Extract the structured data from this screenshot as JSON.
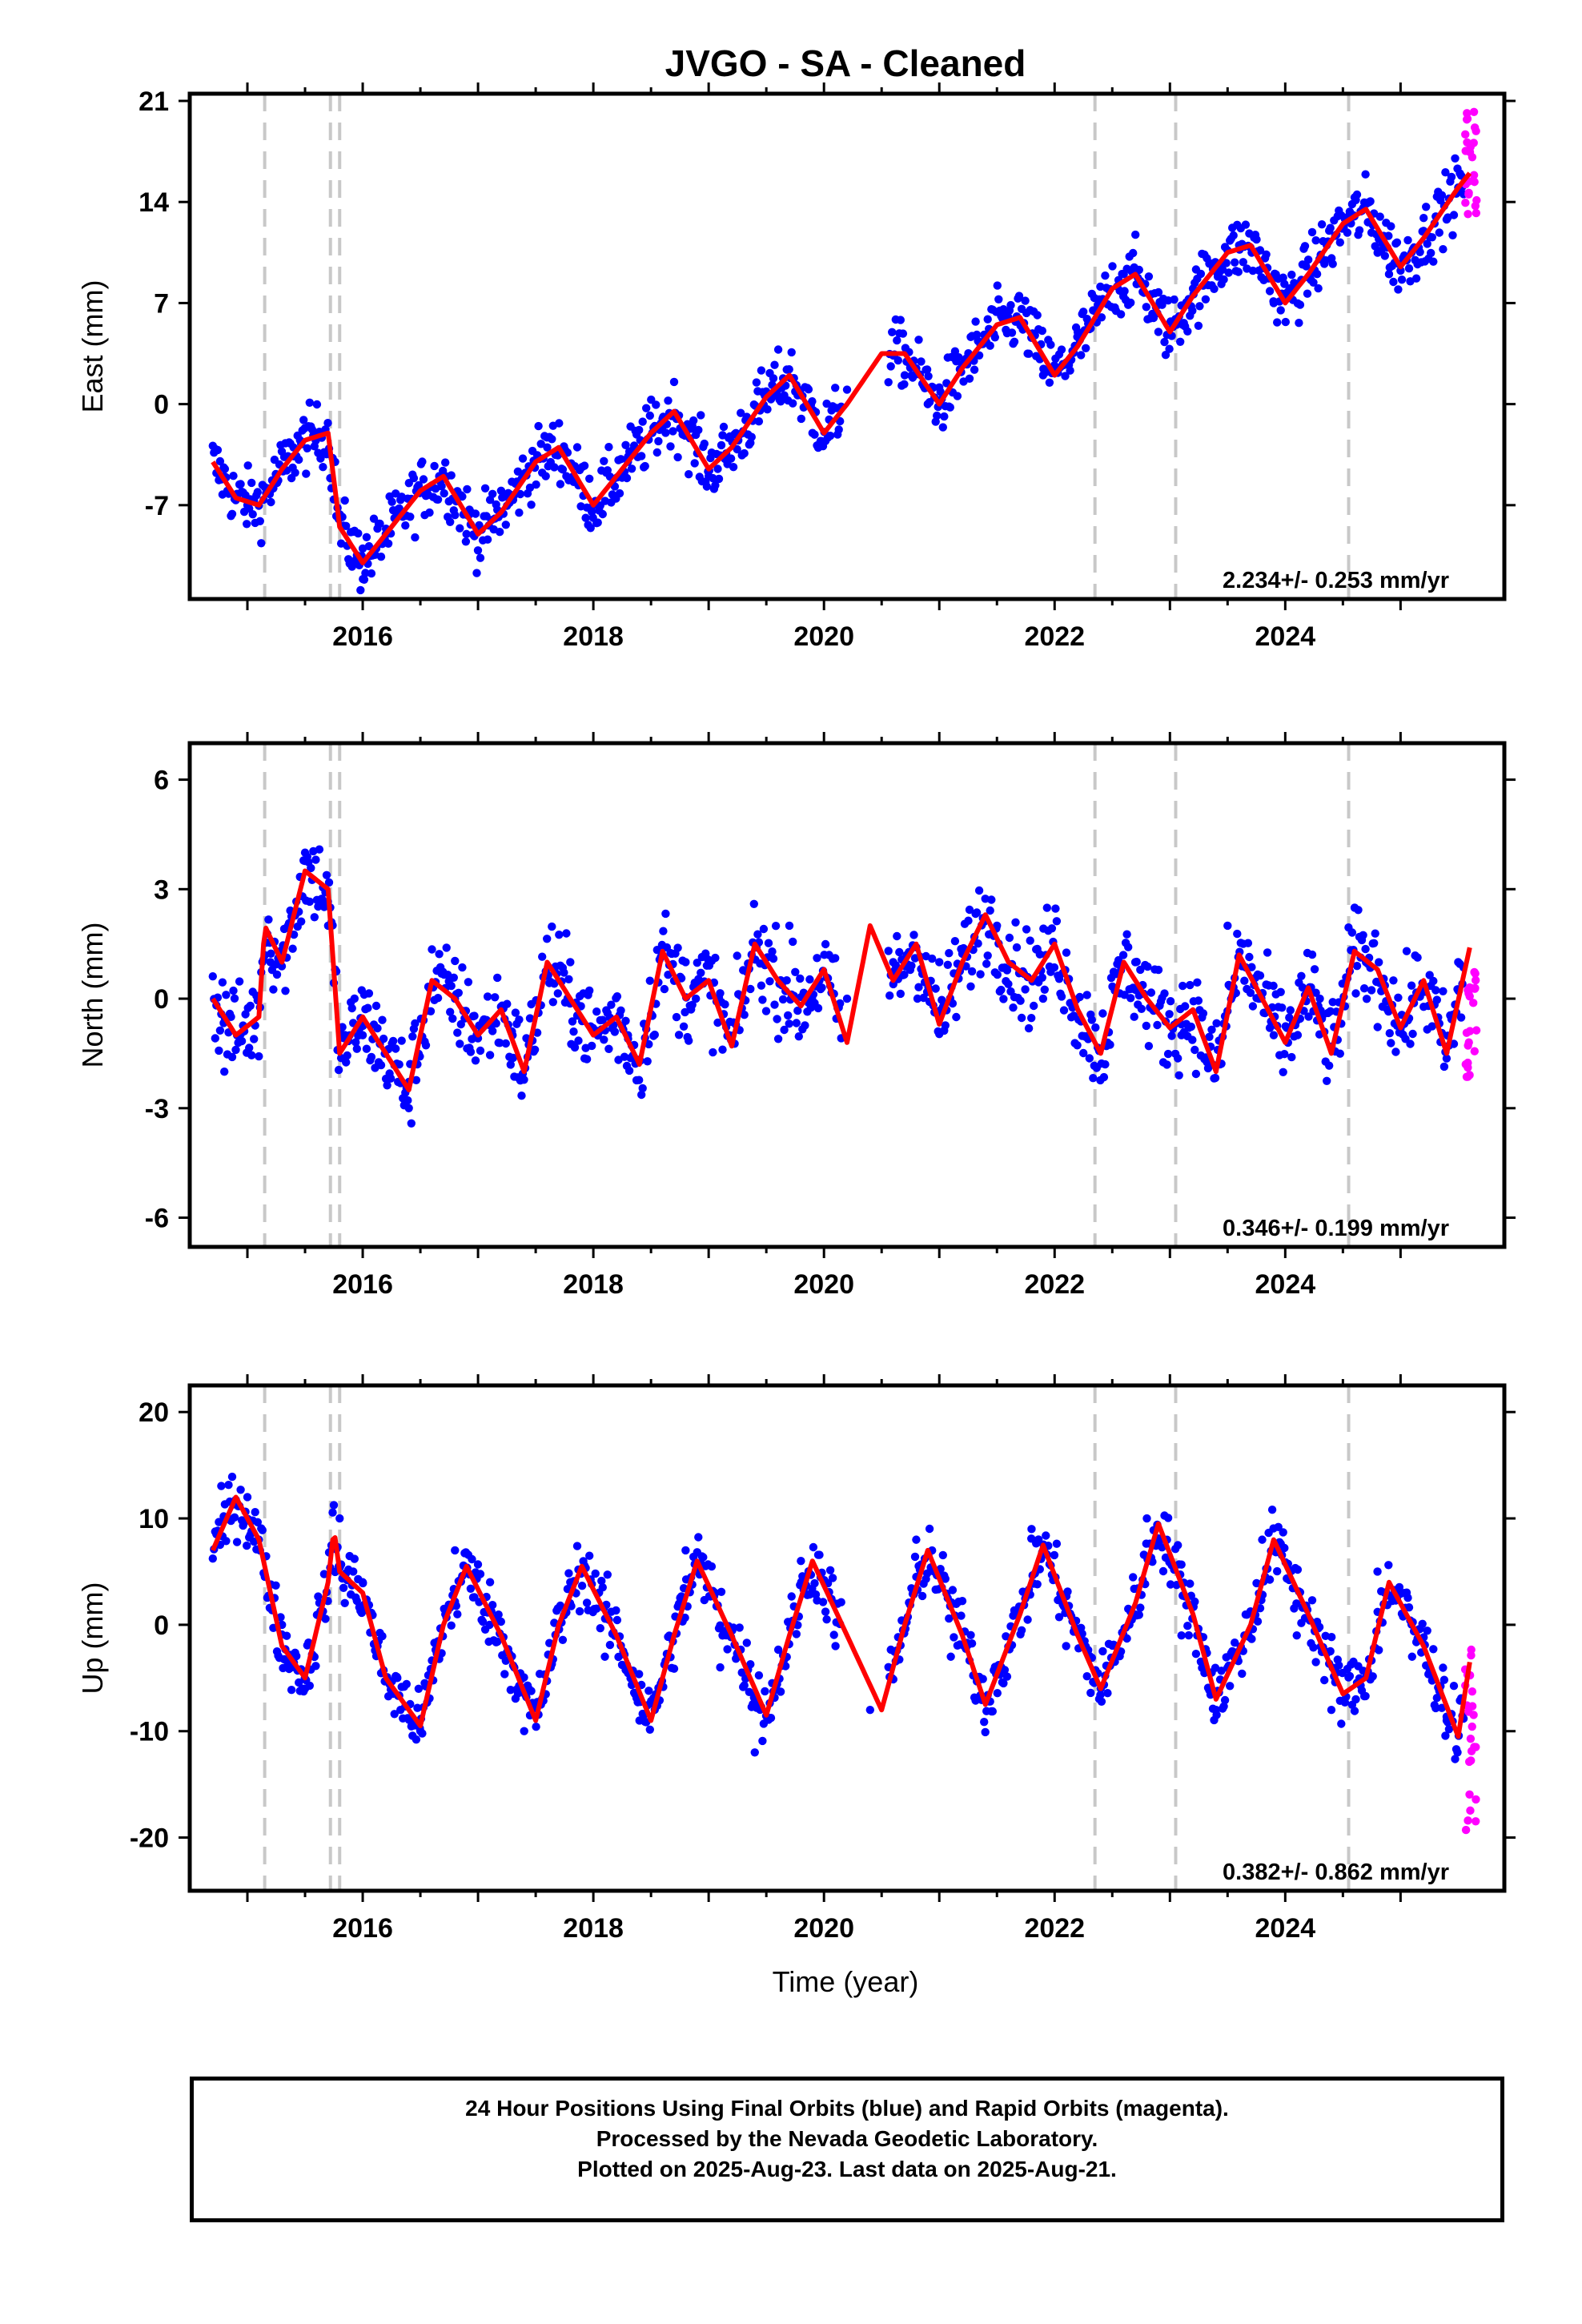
{
  "chart_data": {
    "type": "scatter",
    "title": "JVGO  - SA - Cleaned",
    "xlabel": "Time (year)",
    "xlim": [
      2014.5,
      2025.9
    ],
    "xticks": [
      2016,
      2018,
      2020,
      2022,
      2024
    ],
    "xtick_labels": [
      "2016",
      "2018",
      "2020",
      "2022",
      "2024"
    ],
    "legend_note": [
      "24 Hour Positions Using Final Orbits (blue) and Rapid Orbits (magenta).",
      "Processed by the Nevada Geodetic Laboratory.",
      "Plotted on 2025-Aug-23. Last data on 2025-Aug-21."
    ],
    "colors": {
      "final": "#0000ff",
      "rapid": "#ff00ff",
      "model": "#ff0000",
      "steps": "#c8c8c8"
    },
    "steps": [
      2015.15,
      2015.72,
      2015.8,
      2022.35,
      2023.05,
      2024.55
    ],
    "panels": [
      {
        "ylabel": "East (mm)",
        "ylim": [
          -13.5,
          21.5
        ],
        "yticks": [
          21,
          14,
          7,
          0,
          -7
        ],
        "ytick_labels": [
          "21",
          "14",
          "7",
          "0",
          "-7"
        ],
        "rate": "2.234+/- 0.253 mm/yr",
        "series": [
          {
            "role": "model",
            "x": [
              2014.7,
              2014.9,
              2015.1,
              2015.3,
              2015.5,
              2015.7,
              2015.8,
              2016.0,
              2016.2,
              2016.5,
              2016.7,
              2017.0,
              2017.2,
              2017.5,
              2017.7,
              2018.0,
              2018.2,
              2018.5,
              2018.7,
              2019.0,
              2019.2,
              2019.5,
              2019.7,
              2020.0,
              2020.2,
              2020.5,
              2020.7,
              2021.0,
              2021.2,
              2021.5,
              2021.7,
              2022.0,
              2022.2,
              2022.5,
              2022.7,
              2023.0,
              2023.2,
              2023.5,
              2023.7,
              2024.0,
              2024.2,
              2024.5,
              2024.7,
              2025.0,
              2025.2,
              2025.5,
              2025.6
            ],
            "y": [
              -4,
              -6.5,
              -7,
              -4.5,
              -2.5,
              -2,
              -8.5,
              -11,
              -9,
              -6,
              -5,
              -9,
              -7.5,
              -4,
              -3,
              -7,
              -5,
              -2,
              -0.5,
              -4.5,
              -3,
              0.5,
              2,
              -2,
              0,
              3.5,
              3.5,
              0,
              2.5,
              5.5,
              6,
              2,
              4,
              8,
              9,
              5,
              7.5,
              10.5,
              11,
              7,
              9,
              12.5,
              13.5,
              9.5,
              11.5,
              15,
              16
            ]
          },
          {
            "role": "final",
            "x": [
              2014.8,
              2015.0,
              2015.2,
              2015.4,
              2015.6,
              2016.0,
              2016.2,
              2016.5,
              2016.9,
              2017.2,
              2017.6,
              2018.0,
              2018.3,
              2018.6,
              2019.0,
              2019.3,
              2019.6,
              2019.9,
              2020.2,
              2020.7,
              2020.9,
              2021.3,
              2021.6,
              2021.9,
              2022.2,
              2022.6,
              2022.9,
              2023.2,
              2023.6,
              2023.9,
              2024.2,
              2024.6,
              2024.9,
              2025.2,
              2025.5
            ],
            "y": [
              -5,
              -7,
              -6,
              -3,
              -2,
              -10,
              -9,
              -6,
              -9,
              -6,
              -3,
              -7,
              -4,
              -1,
              -5,
              -2,
              1,
              -2,
              1,
              2,
              0,
              3,
              6,
              2,
              5,
              9,
              5,
              8,
              11,
              7,
              10,
              13,
              9,
              12,
              15
            ]
          },
          {
            "role": "rapid",
            "x": [
              2025.58,
              2025.6,
              2025.62,
              2025.64
            ],
            "y": [
              19,
              16,
              14,
              18
            ]
          }
        ]
      },
      {
        "ylabel": "North (mm)",
        "ylim": [
          -6.8,
          7.0
        ],
        "yticks": [
          6,
          3,
          0,
          -3,
          -6
        ],
        "ytick_labels": [
          "6",
          "3",
          "0",
          "-3",
          "-6"
        ],
        "rate": "0.346+/- 0.199 mm/yr",
        "series": [
          {
            "role": "model",
            "x": [
              2014.7,
              2014.9,
              2015.1,
              2015.15,
              2015.3,
              2015.5,
              2015.7,
              2015.8,
              2016.0,
              2016.2,
              2016.4,
              2016.6,
              2016.8,
              2017.0,
              2017.2,
              2017.4,
              2017.6,
              2017.8,
              2018.0,
              2018.2,
              2018.4,
              2018.6,
              2018.8,
              2019.0,
              2019.2,
              2019.4,
              2019.6,
              2019.8,
              2020.0,
              2020.2,
              2020.4,
              2020.6,
              2020.8,
              2021.0,
              2021.2,
              2021.4,
              2021.6,
              2021.8,
              2022.0,
              2022.2,
              2022.4,
              2022.6,
              2022.8,
              2023.0,
              2023.2,
              2023.4,
              2023.6,
              2023.8,
              2024.0,
              2024.2,
              2024.4,
              2024.6,
              2024.8,
              2025.0,
              2025.2,
              2025.4,
              2025.6
            ],
            "y": [
              0,
              -1,
              -0.5,
              2,
              1,
              3.5,
              3,
              -1.5,
              -0.5,
              -1.5,
              -2.5,
              0.5,
              0,
              -1,
              -0.3,
              -2,
              1,
              0,
              -1,
              -0.5,
              -1.8,
              1.3,
              0,
              0.5,
              -1.3,
              1.5,
              0.5,
              -0.2,
              0.8,
              -1.2,
              2,
              0.5,
              1.5,
              -0.7,
              1,
              2.3,
              1,
              0.5,
              1.5,
              -0.3,
              -1.5,
              1,
              0,
              -0.8,
              -0.3,
              -2,
              1.2,
              0,
              -1.2,
              0.3,
              -1.5,
              1.3,
              0.8,
              -0.8,
              0.5,
              -1.5,
              1.4
            ]
          },
          {
            "role": "final",
            "x": [
              2014.8,
              2015.2,
              2015.5,
              2015.7,
              2016.0,
              2016.4,
              2016.8,
              2017.3,
              2017.8,
              2018.3,
              2018.8,
              2019.3,
              2019.7,
              2020.2,
              2020.6,
              2021.0,
              2021.5,
              2021.9,
              2022.3,
              2022.7,
              2023.1,
              2023.5,
              2023.9,
              2024.3,
              2024.7,
              2025.1,
              2025.5
            ],
            "y": [
              -2,
              1,
              4,
              2,
              -1,
              -3,
              0,
              -1,
              1,
              -1,
              1,
              0,
              2,
              0,
              1,
              1,
              2,
              0,
              -1,
              1,
              -1,
              2,
              -1,
              0,
              1,
              0,
              1
            ]
          },
          {
            "role": "rapid",
            "x": [
              2025.58,
              2025.6,
              2025.62,
              2025.64
            ],
            "y": [
              0.5,
              -1,
              -2,
              0
            ]
          }
        ]
      },
      {
        "ylabel": "Up (mm)",
        "ylim": [
          -25,
          22.5
        ],
        "yticks": [
          20,
          10,
          0,
          -10,
          -20
        ],
        "ytick_labels": [
          "20",
          "10",
          "0",
          "-10",
          "-20"
        ],
        "xlabel": "Time (year)",
        "rate": "0.382+/- 0.862 mm/yr",
        "series": [
          {
            "role": "model",
            "x": [
              2014.7,
              2014.9,
              2015.1,
              2015.3,
              2015.5,
              2015.7,
              2015.75,
              2015.8,
              2016.0,
              2016.2,
              2016.5,
              2016.7,
              2016.9,
              2017.2,
              2017.5,
              2017.7,
              2017.9,
              2018.2,
              2018.5,
              2018.7,
              2018.9,
              2019.2,
              2019.5,
              2019.7,
              2019.9,
              2020.2,
              2020.5,
              2020.7,
              2020.9,
              2021.2,
              2021.4,
              2021.7,
              2021.9,
              2022.2,
              2022.4,
              2022.7,
              2022.9,
              2023.2,
              2023.4,
              2023.7,
              2023.9,
              2024.2,
              2024.5,
              2024.7,
              2024.9,
              2025.2,
              2025.5,
              2025.6
            ],
            "y": [
              7,
              12,
              8,
              -2,
              -5,
              4,
              9,
              5,
              3,
              -5,
              -9.5,
              0,
              5.5,
              -1,
              -9,
              0,
              5.5,
              -1,
              -9,
              -1,
              6,
              -1,
              -8.5,
              -1,
              6,
              -1,
              -8,
              0,
              7,
              -1,
              -7.5,
              1,
              7.5,
              -1,
              -6,
              2,
              9.5,
              1,
              -7,
              0,
              8,
              1,
              -6.5,
              -5,
              4,
              -2,
              -10.5,
              -3.5
            ]
          },
          {
            "role": "final",
            "x": [
              2014.8,
              2015.0,
              2015.3,
              2015.5,
              2015.8,
              2016.0,
              2016.3,
              2016.5,
              2016.8,
              2017.1,
              2017.4,
              2017.8,
              2018.1,
              2018.4,
              2018.8,
              2019.1,
              2019.4,
              2019.8,
              2020.1,
              2020.4,
              2020.8,
              2021.1,
              2021.4,
              2021.8,
              2022.1,
              2022.4,
              2022.8,
              2023.1,
              2023.4,
              2023.8,
              2024.1,
              2024.4,
              2024.8,
              2025.1,
              2025.4
            ],
            "y": [
              10,
              12,
              0,
              -6,
              10,
              4,
              -5,
              -10,
              7,
              0,
              -10,
              4,
              -3,
              -9,
              7,
              -4,
              -12,
              6,
              -2,
              -8,
              8,
              -3,
              -7,
              9,
              -2,
              -6,
              10,
              -1,
              -8,
              8,
              -1,
              -8,
              5,
              -3,
              -9
            ]
          },
          {
            "role": "rapid",
            "x": [
              2025.58,
              2025.6,
              2025.62,
              2025.64
            ],
            "y": [
              -4,
              -12,
              -18,
              -8
            ]
          }
        ]
      }
    ]
  }
}
